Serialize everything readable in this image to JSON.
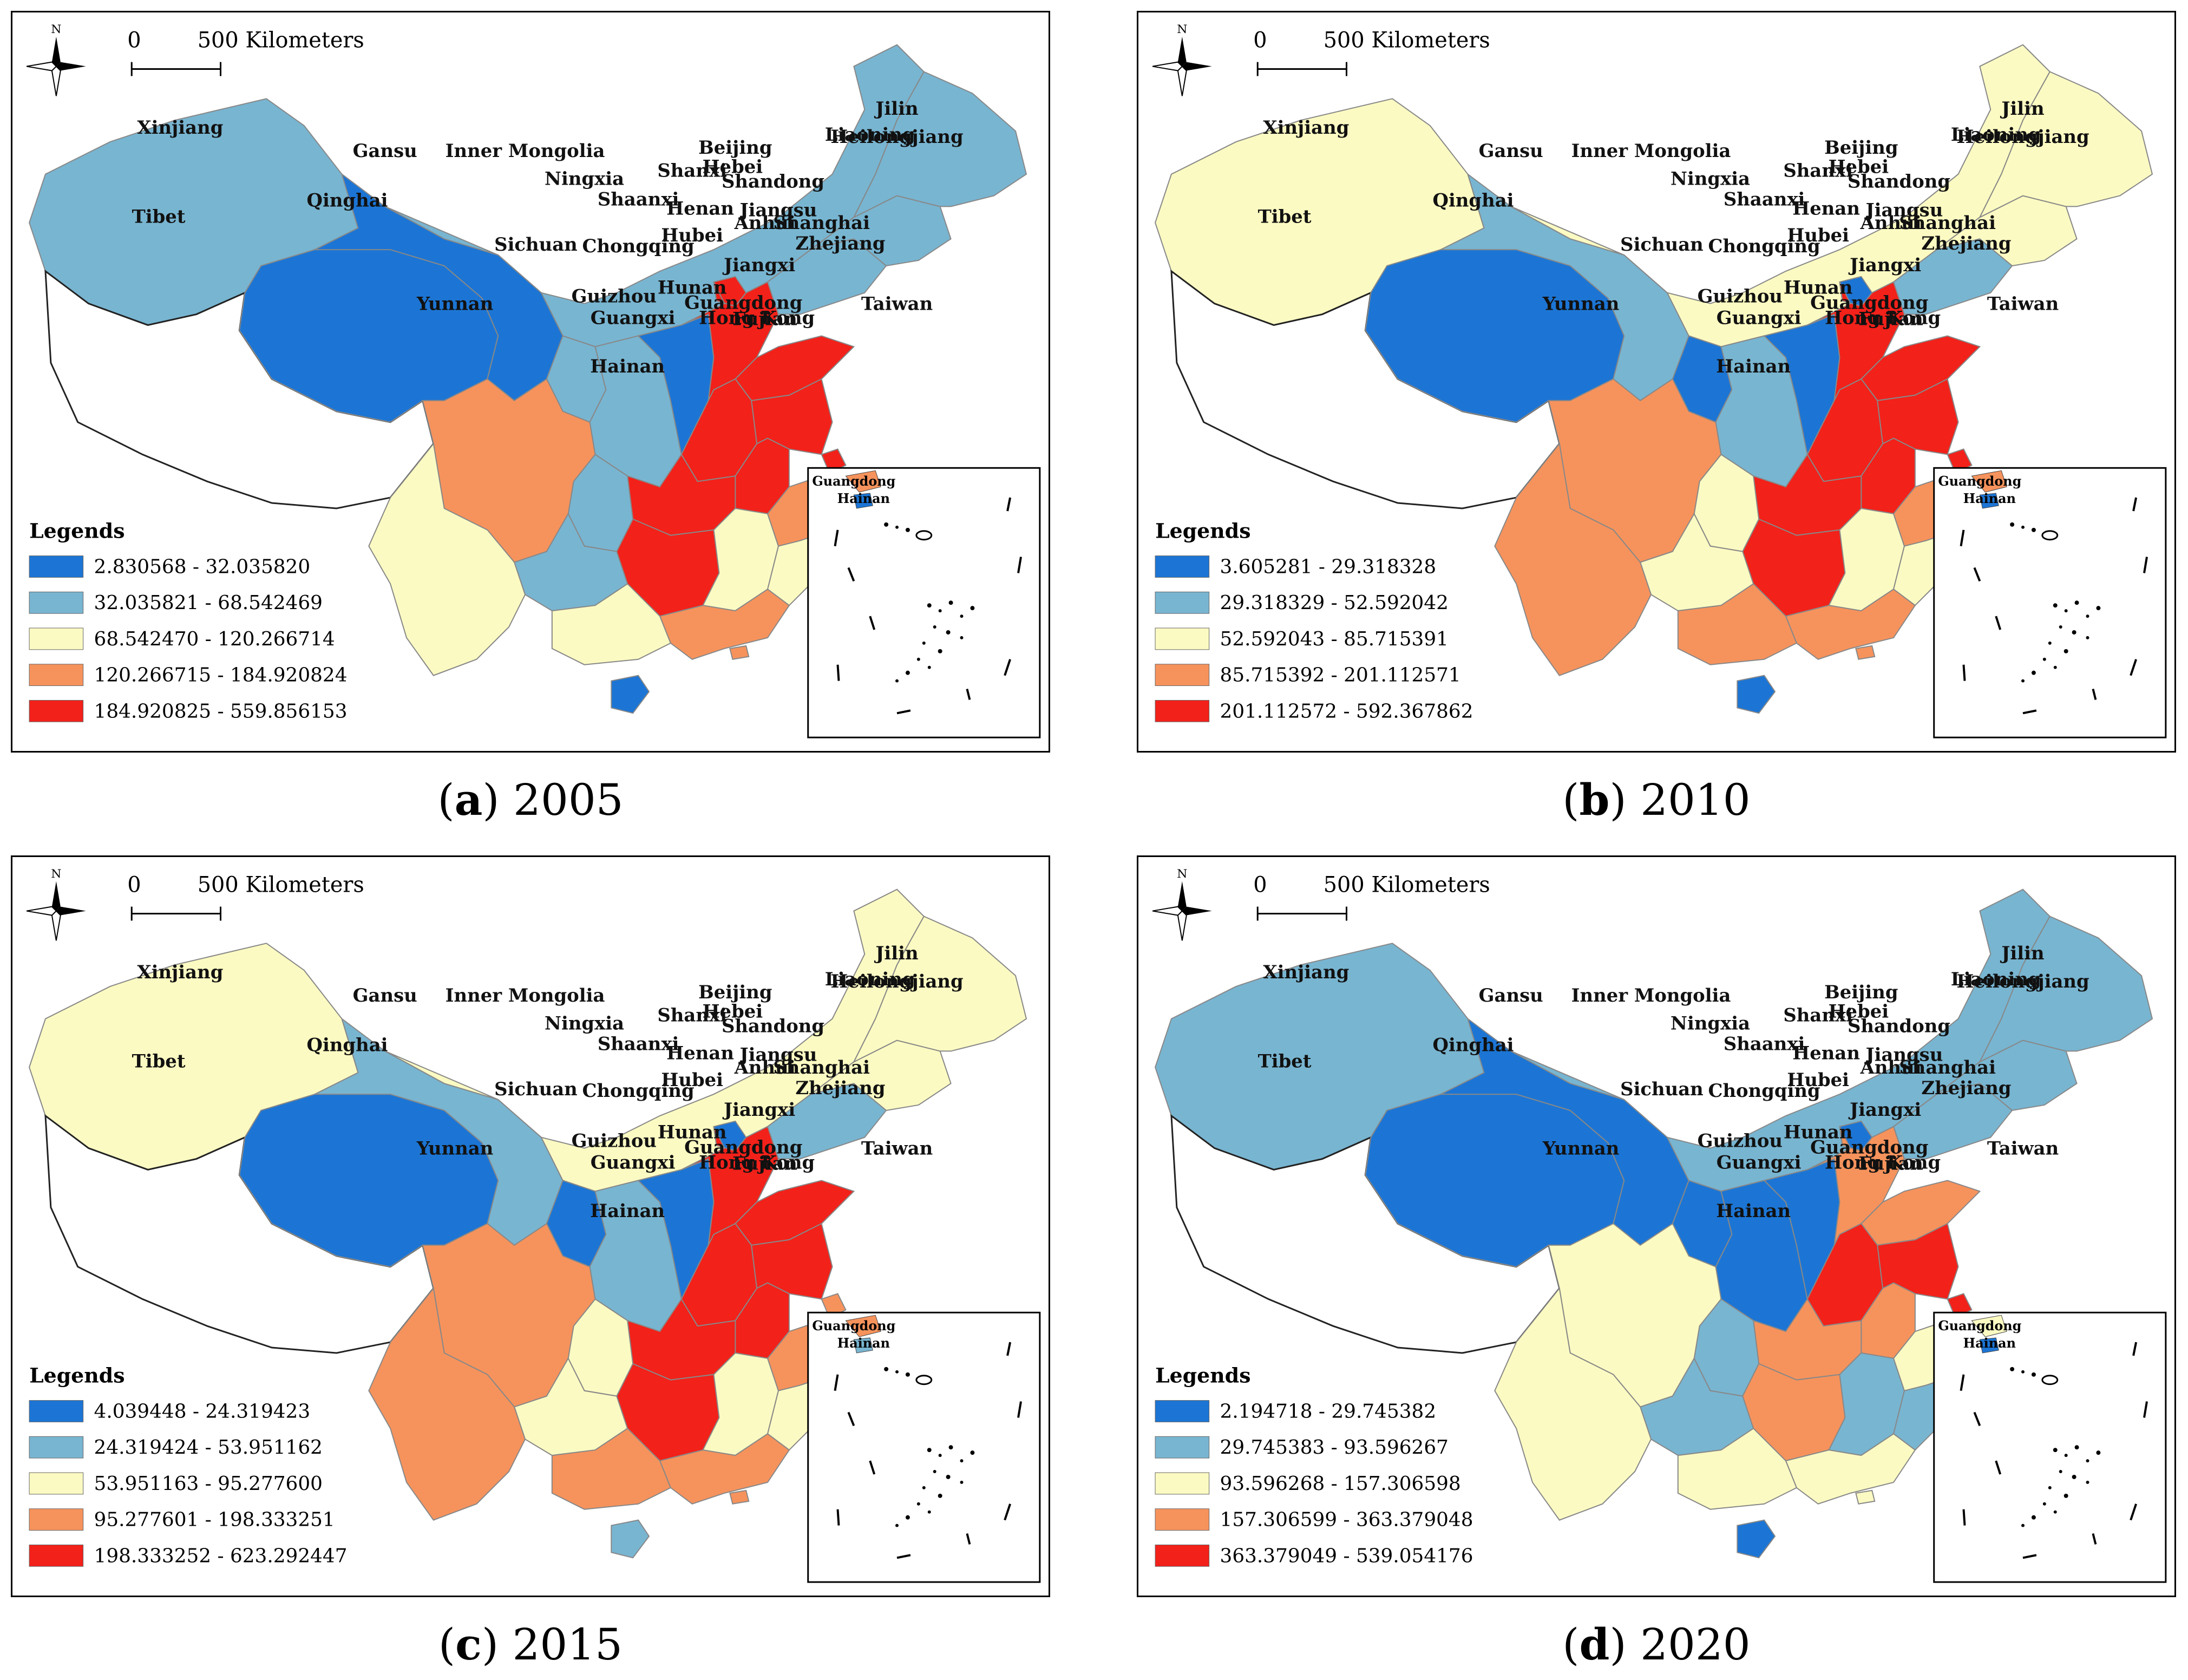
{
  "scalebar": {
    "zero": "0",
    "distance": "500 Kilometers",
    "north": "N"
  },
  "legend_title": "Legends",
  "colors": {
    "c1": "#1c75d4",
    "c2": "#78b5d1",
    "c3": "#fbfac2",
    "c4": "#f6935c",
    "c5": "#f2211a",
    "tibet": "#ffffff"
  },
  "province_labels": [
    "Xinjiang",
    "Tibet",
    "Qinghai",
    "Gansu",
    "Inner Mongolia",
    "Ningxia",
    "Shaanxi",
    "Shanxi",
    "Beijing",
    "Hebei",
    "Shandong",
    "Henan",
    "Jiangsu",
    "Anhui",
    "Shanghai",
    "Hubei",
    "Chongqing",
    "Sichuan",
    "Guizhou",
    "Yunnan",
    "Hunan",
    "Jiangxi",
    "Zhejiang",
    "Fujian",
    "Guangdong",
    "Guangxi",
    "Hong Kong",
    "Hainan",
    "Taiwan",
    "Heilongjiang",
    "Jilin",
    "Liaoning"
  ],
  "inset_labels": {
    "top": "Guangdong",
    "bottom": "Hainan"
  },
  "panels": [
    {
      "caption_letter": "a",
      "year": "2005",
      "legend": [
        "2.830568 - 32.035820",
        "32.035821 - 68.542469",
        "68.542470 - 120.266714",
        "120.266715 - 184.920824",
        "184.920825 - 559.856153"
      ],
      "classes": {
        "Xinjiang": 2,
        "Tibet": 0,
        "Qinghai": 1,
        "Gansu": 1,
        "Inner Mongolia": 2,
        "Ningxia": 2,
        "Shaanxi": 2,
        "Shanxi": 1,
        "Beijing": 5,
        "Hebei": 5,
        "Shandong": 5,
        "Henan": 5,
        "Jiangsu": 5,
        "Anhui": 5,
        "Shanghai": 5,
        "Hubei": 5,
        "Chongqing": 2,
        "Sichuan": 4,
        "Guizhou": 2,
        "Yunnan": 3,
        "Hunan": 5,
        "Jiangxi": 3,
        "Zhejiang": 4,
        "Fujian": 3,
        "Guangdong": 4,
        "Guangxi": 3,
        "Hong Kong": 4,
        "Hainan": 1,
        "Taiwan": 3,
        "Heilongjiang": 2,
        "Jilin": 2,
        "Liaoning": 2
      }
    },
    {
      "caption_letter": "b",
      "year": "2010",
      "legend": [
        "3.605281 - 29.318328",
        "29.318329 - 52.592042",
        "52.592043 - 85.715391",
        "85.715392 - 201.112571",
        "201.112572 - 592.367862"
      ],
      "classes": {
        "Xinjiang": 3,
        "Tibet": 0,
        "Qinghai": 1,
        "Gansu": 2,
        "Inner Mongolia": 3,
        "Ningxia": 1,
        "Shaanxi": 2,
        "Shanxi": 1,
        "Beijing": 1,
        "Hebei": 5,
        "Shandong": 5,
        "Henan": 5,
        "Jiangsu": 5,
        "Anhui": 5,
        "Shanghai": 5,
        "Hubei": 5,
        "Chongqing": 3,
        "Sichuan": 4,
        "Guizhou": 3,
        "Yunnan": 4,
        "Hunan": 5,
        "Jiangxi": 3,
        "Zhejiang": 4,
        "Fujian": 3,
        "Guangdong": 4,
        "Guangxi": 4,
        "Hong Kong": 4,
        "Hainan": 1,
        "Taiwan": 3,
        "Heilongjiang": 3,
        "Jilin": 3,
        "Liaoning": 2
      }
    },
    {
      "caption_letter": "c",
      "year": "2015",
      "legend": [
        "4.039448 - 24.319423",
        "24.319424 - 53.951162",
        "53.951163 - 95.277600",
        "95.277601 - 198.333251",
        "198.333252 - 623.292447"
      ],
      "classes": {
        "Xinjiang": 3,
        "Tibet": 0,
        "Qinghai": 1,
        "Gansu": 2,
        "Inner Mongolia": 3,
        "Ningxia": 1,
        "Shaanxi": 2,
        "Shanxi": 1,
        "Beijing": 1,
        "Hebei": 5,
        "Shandong": 5,
        "Henan": 5,
        "Jiangsu": 5,
        "Anhui": 5,
        "Shanghai": 4,
        "Hubei": 5,
        "Chongqing": 3,
        "Sichuan": 4,
        "Guizhou": 3,
        "Yunnan": 4,
        "Hunan": 5,
        "Jiangxi": 3,
        "Zhejiang": 4,
        "Fujian": 3,
        "Guangdong": 4,
        "Guangxi": 4,
        "Hong Kong": 4,
        "Hainan": 2,
        "Taiwan": 3,
        "Heilongjiang": 3,
        "Jilin": 3,
        "Liaoning": 2
      }
    },
    {
      "caption_letter": "d",
      "year": "2020",
      "legend": [
        "2.194718 - 29.745382",
        "29.745383 - 93.596267",
        "93.596268 - 157.306598",
        "157.306599 - 363.379048",
        "363.379049 - 539.054176"
      ],
      "classes": {
        "Xinjiang": 2,
        "Tibet": 0,
        "Qinghai": 1,
        "Gansu": 1,
        "Inner Mongolia": 2,
        "Ningxia": 1,
        "Shaanxi": 1,
        "Shanxi": 1,
        "Beijing": 1,
        "Hebei": 4,
        "Shandong": 4,
        "Henan": 5,
        "Jiangsu": 5,
        "Anhui": 4,
        "Shanghai": 5,
        "Hubei": 4,
        "Chongqing": 2,
        "Sichuan": 3,
        "Guizhou": 2,
        "Yunnan": 3,
        "Hunan": 4,
        "Jiangxi": 2,
        "Zhejiang": 3,
        "Fujian": 2,
        "Guangdong": 3,
        "Guangxi": 3,
        "Hong Kong": 3,
        "Hainan": 1,
        "Taiwan": 3,
        "Heilongjiang": 2,
        "Jilin": 2,
        "Liaoning": 2
      }
    }
  ]
}
